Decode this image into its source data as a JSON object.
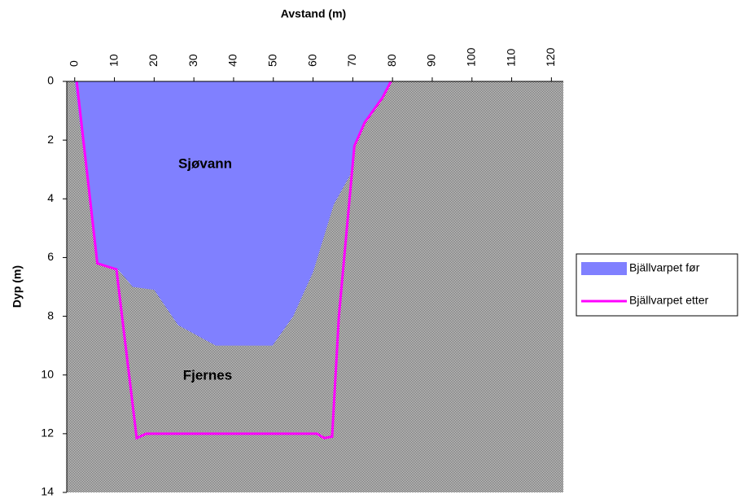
{
  "chart_data": {
    "type": "area",
    "xlabel": "Avstand (m)",
    "ylabel": "Dyp (m)",
    "annotations": [
      "Sjøvann",
      "Fjernes"
    ],
    "xlim": [
      -2,
      123
    ],
    "xticks": [
      0,
      10,
      20,
      30,
      40,
      50,
      60,
      70,
      80,
      90,
      100,
      110,
      120
    ],
    "ylim": [
      0,
      14
    ],
    "yticks": [
      0,
      2,
      4,
      6,
      8,
      10,
      12,
      14
    ],
    "y_inverted": true,
    "x_axis_top": true,
    "legend": "right",
    "series": [
      {
        "name": "Bjällvarpet før",
        "type": "area",
        "color": "#8080ff",
        "x": [
          0,
          5.7,
          10.9,
          14.6,
          20,
          26,
          35.5,
          49.8,
          55,
          60,
          65.2,
          69.3,
          70.4,
          73,
          77.5,
          79.6
        ],
        "values": [
          0,
          6.2,
          6.4,
          7,
          7.1,
          8.3,
          9,
          9,
          8,
          6.5,
          4.2,
          3.2,
          2.2,
          1.4,
          0.55,
          0
        ]
      },
      {
        "name": "Bjällvarpet etter",
        "type": "line",
        "color": "#ff00ff",
        "x": [
          0.5,
          5.7,
          10.5,
          15.6,
          18,
          61,
          62.8,
          64.8,
          66.5,
          70.4,
          73,
          77.5,
          79.6
        ],
        "values": [
          0,
          6.2,
          6.4,
          12.15,
          12,
          12,
          12.15,
          12.1,
          8,
          2.2,
          1.4,
          0.55,
          0
        ]
      }
    ]
  }
}
